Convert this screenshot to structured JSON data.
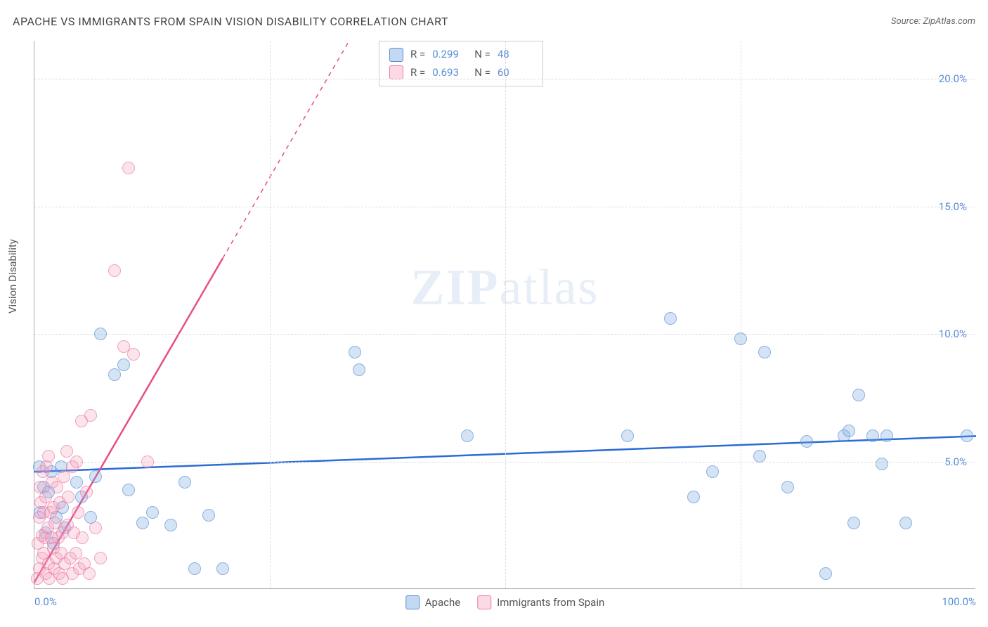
{
  "title": "APACHE VS IMMIGRANTS FROM SPAIN VISION DISABILITY CORRELATION CHART",
  "source_prefix": "Source: ",
  "source": "ZipAtlas.com",
  "y_axis_label": "Vision Disability",
  "watermark_a": "ZIP",
  "watermark_b": "atlas",
  "chart": {
    "type": "scatter",
    "xlim": [
      0,
      100
    ],
    "ylim": [
      0,
      21.5
    ],
    "x_ticks": [
      {
        "v": 0,
        "label": "0.0%",
        "align": "left"
      },
      {
        "v": 100,
        "label": "100.0%",
        "align": "right"
      }
    ],
    "y_ticks": [
      {
        "v": 5,
        "label": "5.0%"
      },
      {
        "v": 10,
        "label": "10.0%"
      },
      {
        "v": 15,
        "label": "15.0%"
      },
      {
        "v": 20,
        "label": "20.0%"
      }
    ],
    "x_grid": [
      25,
      50,
      75
    ],
    "colors": {
      "blue_fill": "rgba(120,170,225,0.45)",
      "blue_stroke": "#5b8fd6",
      "pink_fill": "rgba(245,160,190,0.40)",
      "pink_stroke": "#ec7ba3",
      "grid": "#dddddd",
      "trend_blue": "#2a6cd4",
      "trend_pink": "#e84c88"
    },
    "marker_radius": 9,
    "series": [
      {
        "name": "Apache",
        "color": "blue",
        "R": "0.299",
        "N": "48",
        "trend": {
          "x1": 0,
          "y1": 4.6,
          "x2": 100,
          "y2": 6.0
        },
        "points": [
          [
            0.5,
            4.8
          ],
          [
            0.6,
            3.0
          ],
          [
            1.0,
            4.0
          ],
          [
            1.2,
            2.2
          ],
          [
            1.5,
            3.8
          ],
          [
            1.8,
            4.6
          ],
          [
            2.0,
            1.8
          ],
          [
            2.3,
            2.8
          ],
          [
            2.8,
            4.8
          ],
          [
            3.0,
            3.2
          ],
          [
            3.2,
            2.4
          ],
          [
            4.5,
            4.2
          ],
          [
            5.0,
            3.6
          ],
          [
            6.0,
            2.8
          ],
          [
            6.5,
            4.4
          ],
          [
            7.0,
            10.0
          ],
          [
            8.5,
            8.4
          ],
          [
            9.5,
            8.8
          ],
          [
            10.0,
            3.9
          ],
          [
            11.5,
            2.6
          ],
          [
            12.5,
            3.0
          ],
          [
            14.5,
            2.5
          ],
          [
            16.0,
            4.2
          ],
          [
            17.0,
            0.8
          ],
          [
            18.5,
            2.9
          ],
          [
            20.0,
            0.8
          ],
          [
            34.0,
            9.3
          ],
          [
            34.5,
            8.6
          ],
          [
            46.0,
            6.0
          ],
          [
            63.0,
            6.0
          ],
          [
            67.5,
            10.6
          ],
          [
            70.0,
            3.6
          ],
          [
            72.0,
            4.6
          ],
          [
            75.0,
            9.8
          ],
          [
            77.0,
            5.2
          ],
          [
            77.5,
            9.3
          ],
          [
            80.0,
            4.0
          ],
          [
            82.0,
            5.8
          ],
          [
            84.0,
            0.6
          ],
          [
            86.0,
            6.0
          ],
          [
            86.5,
            6.2
          ],
          [
            87.0,
            2.6
          ],
          [
            87.5,
            7.6
          ],
          [
            89.0,
            6.0
          ],
          [
            90.0,
            4.9
          ],
          [
            90.5,
            6.0
          ],
          [
            92.5,
            2.6
          ],
          [
            99.0,
            6.0
          ]
        ]
      },
      {
        "name": "Immigrants from Spain",
        "color": "pink",
        "R": "0.693",
        "N": "60",
        "trend": {
          "x1": -2,
          "y1": -1.0,
          "x2": 35,
          "y2": 22.5
        },
        "trend_dash_after_x": 20,
        "points": [
          [
            0.3,
            0.4
          ],
          [
            0.4,
            1.8
          ],
          [
            0.5,
            2.8
          ],
          [
            0.5,
            0.8
          ],
          [
            0.6,
            4.0
          ],
          [
            0.7,
            3.4
          ],
          [
            0.8,
            1.2
          ],
          [
            0.8,
            2.1
          ],
          [
            0.9,
            4.6
          ],
          [
            1.0,
            1.4
          ],
          [
            1.0,
            3.0
          ],
          [
            1.1,
            2.0
          ],
          [
            1.2,
            0.6
          ],
          [
            1.2,
            3.6
          ],
          [
            1.3,
            4.8
          ],
          [
            1.4,
            2.4
          ],
          [
            1.5,
            1.0
          ],
          [
            1.5,
            5.2
          ],
          [
            1.6,
            0.4
          ],
          [
            1.7,
            3.0
          ],
          [
            1.8,
            2.0
          ],
          [
            1.9,
            4.2
          ],
          [
            2.0,
            1.6
          ],
          [
            2.0,
            3.2
          ],
          [
            2.1,
            0.8
          ],
          [
            2.2,
            2.6
          ],
          [
            2.3,
            1.2
          ],
          [
            2.4,
            4.0
          ],
          [
            2.5,
            2.0
          ],
          [
            2.6,
            0.6
          ],
          [
            2.7,
            3.4
          ],
          [
            2.8,
            1.4
          ],
          [
            3.0,
            2.2
          ],
          [
            3.0,
            0.4
          ],
          [
            3.1,
            4.4
          ],
          [
            3.2,
            1.0
          ],
          [
            3.4,
            5.4
          ],
          [
            3.5,
            2.5
          ],
          [
            3.6,
            3.6
          ],
          [
            3.8,
            1.2
          ],
          [
            4.0,
            4.8
          ],
          [
            4.0,
            0.6
          ],
          [
            4.2,
            2.2
          ],
          [
            4.4,
            1.4
          ],
          [
            4.5,
            5.0
          ],
          [
            4.6,
            3.0
          ],
          [
            4.8,
            0.8
          ],
          [
            5.0,
            6.6
          ],
          [
            5.1,
            2.0
          ],
          [
            5.3,
            1.0
          ],
          [
            5.5,
            3.8
          ],
          [
            5.8,
            0.6
          ],
          [
            6.0,
            6.8
          ],
          [
            6.5,
            2.4
          ],
          [
            7.0,
            1.2
          ],
          [
            8.5,
            12.5
          ],
          [
            9.5,
            9.5
          ],
          [
            10.5,
            9.2
          ],
          [
            10.0,
            16.5
          ],
          [
            12.0,
            5.0
          ]
        ]
      }
    ]
  },
  "legend_stats": {
    "r_label": "R =",
    "n_label": "N ="
  },
  "bottom_legend": [
    {
      "color": "blue",
      "label": "Apache"
    },
    {
      "color": "pink",
      "label": "Immigrants from Spain"
    }
  ]
}
